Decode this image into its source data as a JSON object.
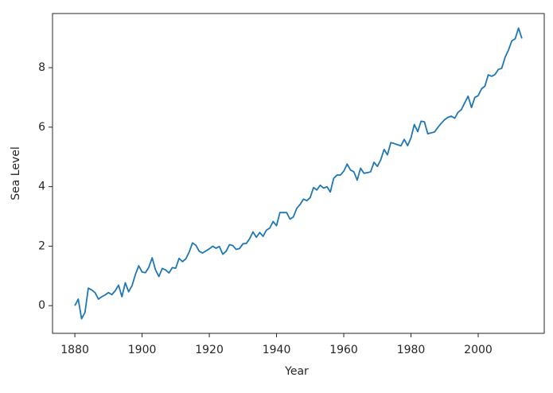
{
  "chart_data": {
    "type": "line",
    "xlabel": "Year",
    "ylabel": "Sea Level",
    "x": [
      1880,
      1881,
      1882,
      1883,
      1884,
      1885,
      1886,
      1887,
      1888,
      1889,
      1890,
      1891,
      1892,
      1893,
      1894,
      1895,
      1896,
      1897,
      1898,
      1899,
      1900,
      1901,
      1902,
      1903,
      1904,
      1905,
      1906,
      1907,
      1908,
      1909,
      1910,
      1911,
      1912,
      1913,
      1914,
      1915,
      1916,
      1917,
      1918,
      1919,
      1920,
      1921,
      1922,
      1923,
      1924,
      1925,
      1926,
      1927,
      1928,
      1929,
      1930,
      1931,
      1932,
      1933,
      1934,
      1935,
      1936,
      1937,
      1938,
      1939,
      1940,
      1941,
      1942,
      1943,
      1944,
      1945,
      1946,
      1947,
      1948,
      1949,
      1950,
      1951,
      1952,
      1953,
      1954,
      1955,
      1956,
      1957,
      1958,
      1959,
      1960,
      1961,
      1962,
      1963,
      1964,
      1965,
      1966,
      1967,
      1968,
      1969,
      1970,
      1971,
      1972,
      1973,
      1974,
      1975,
      1976,
      1977,
      1978,
      1979,
      1980,
      1981,
      1982,
      1983,
      1984,
      1985,
      1986,
      1987,
      1988,
      1989,
      1990,
      1991,
      1992,
      1993,
      1994,
      1995,
      1996,
      1997,
      1998,
      1999,
      2000,
      2001,
      2002,
      2003,
      2004,
      2005,
      2006,
      2007,
      2008,
      2009,
      2010,
      2011,
      2012,
      2013
    ],
    "series": [
      {
        "color": "#1f77b4",
        "values": [
          0.0,
          0.22,
          -0.44,
          -0.23,
          0.59,
          0.53,
          0.44,
          0.22,
          0.3,
          0.36,
          0.44,
          0.37,
          0.5,
          0.69,
          0.3,
          0.77,
          0.47,
          0.67,
          1.04,
          1.34,
          1.13,
          1.11,
          1.29,
          1.61,
          1.2,
          0.98,
          1.25,
          1.2,
          1.1,
          1.28,
          1.26,
          1.59,
          1.48,
          1.57,
          1.8,
          2.11,
          2.03,
          1.83,
          1.77,
          1.84,
          1.91,
          2.0,
          1.93,
          1.99,
          1.73,
          1.83,
          2.05,
          2.02,
          1.89,
          1.92,
          2.08,
          2.09,
          2.25,
          2.48,
          2.3,
          2.46,
          2.33,
          2.54,
          2.61,
          2.83,
          2.69,
          3.13,
          3.13,
          3.13,
          2.91,
          2.98,
          3.27,
          3.4,
          3.58,
          3.53,
          3.63,
          3.97,
          3.89,
          4.05,
          3.95,
          4.0,
          3.82,
          4.28,
          4.39,
          4.39,
          4.52,
          4.76,
          4.56,
          4.5,
          4.22,
          4.62,
          4.45,
          4.47,
          4.5,
          4.82,
          4.68,
          4.9,
          5.25,
          5.07,
          5.48,
          5.45,
          5.41,
          5.37,
          5.59,
          5.38,
          5.64,
          6.09,
          5.85,
          6.2,
          6.18,
          5.78,
          5.81,
          5.84,
          5.99,
          6.13,
          6.25,
          6.33,
          6.37,
          6.3,
          6.5,
          6.59,
          6.82,
          7.04,
          6.66,
          7.0,
          7.06,
          7.29,
          7.38,
          7.76,
          7.71,
          7.77,
          7.94,
          7.98,
          8.35,
          8.59,
          8.9,
          8.97,
          9.33,
          8.98
        ]
      }
    ],
    "xlim": [
      1873.35,
      2019.65
    ],
    "ylim": [
      -0.93,
      9.82
    ],
    "xticks": [
      1880,
      1900,
      1920,
      1940,
      1960,
      1980,
      2000
    ],
    "yticks": [
      0,
      2,
      4,
      6,
      8
    ]
  }
}
